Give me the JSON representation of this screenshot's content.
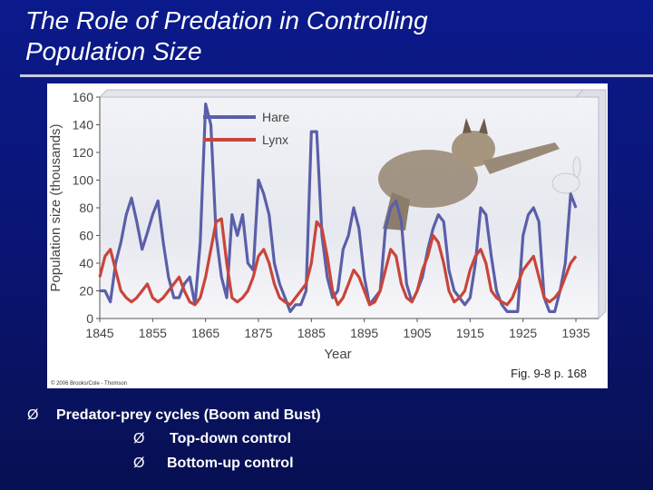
{
  "slide": {
    "title_line1": "The Role of Predation in Controlling",
    "title_line2": "Population Size",
    "figure_ref": "Fig. 9-8 p. 168",
    "copyright": "© 2006 Brooks/Cole - Thomson",
    "bullet_marker": "Ø",
    "bullet": "Predator-prey cycles (Boom and Bust)",
    "sub_bullets": [
      "Top-down control",
      "Bottom-up control"
    ]
  },
  "colors": {
    "hare": "#5b5fa8",
    "lynx": "#c9453a",
    "background": "#0b1a8c"
  },
  "chart_data": {
    "type": "line",
    "xlabel": "Year",
    "ylabel": "Population size (thousands)",
    "xlim": [
      1845,
      1935
    ],
    "ylim": [
      0,
      160
    ],
    "x_ticks": [
      "1845",
      "1855",
      "1865",
      "1875",
      "1885",
      "1895",
      "1905",
      "1915",
      "1925",
      "1935"
    ],
    "y_ticks": [
      "0",
      "20",
      "40",
      "60",
      "80",
      "100",
      "120",
      "140",
      "160"
    ],
    "legend_position": "top-left",
    "series": [
      {
        "name": "Hare",
        "x": [
          1845,
          1846,
          1847,
          1848,
          1849,
          1850,
          1851,
          1852,
          1853,
          1854,
          1855,
          1856,
          1857,
          1858,
          1859,
          1860,
          1861,
          1862,
          1863,
          1864,
          1865,
          1866,
          1867,
          1868,
          1869,
          1870,
          1871,
          1872,
          1873,
          1874,
          1875,
          1876,
          1877,
          1878,
          1879,
          1880,
          1881,
          1882,
          1883,
          1884,
          1885,
          1886,
          1887,
          1888,
          1889,
          1890,
          1891,
          1892,
          1893,
          1894,
          1895,
          1896,
          1897,
          1898,
          1899,
          1900,
          1901,
          1902,
          1903,
          1904,
          1905,
          1906,
          1907,
          1908,
          1909,
          1910,
          1911,
          1912,
          1913,
          1914,
          1915,
          1916,
          1917,
          1918,
          1919,
          1920,
          1921,
          1922,
          1923,
          1924,
          1925,
          1926,
          1927,
          1928,
          1929,
          1930,
          1931,
          1932,
          1933,
          1934,
          1935
        ],
        "values": [
          20,
          20,
          12,
          40,
          55,
          75,
          87,
          70,
          50,
          62,
          75,
          85,
          55,
          30,
          15,
          15,
          25,
          30,
          10,
          55,
          155,
          140,
          60,
          30,
          15,
          75,
          60,
          75,
          40,
          35,
          100,
          90,
          75,
          40,
          25,
          15,
          5,
          10,
          10,
          20,
          135,
          135,
          60,
          30,
          15,
          20,
          50,
          60,
          80,
          65,
          30,
          10,
          15,
          20,
          65,
          80,
          85,
          70,
          25,
          12,
          20,
          30,
          50,
          65,
          75,
          70,
          35,
          20,
          15,
          10,
          15,
          40,
          80,
          75,
          45,
          20,
          10,
          5,
          5,
          5,
          60,
          75,
          80,
          70,
          15,
          5,
          5,
          20,
          40,
          90,
          80
        ]
      },
      {
        "name": "Lynx",
        "x": [
          1845,
          1846,
          1847,
          1848,
          1849,
          1850,
          1851,
          1852,
          1853,
          1854,
          1855,
          1856,
          1857,
          1858,
          1859,
          1860,
          1861,
          1862,
          1863,
          1864,
          1865,
          1866,
          1867,
          1868,
          1869,
          1870,
          1871,
          1872,
          1873,
          1874,
          1875,
          1876,
          1877,
          1878,
          1879,
          1880,
          1881,
          1882,
          1883,
          1884,
          1885,
          1886,
          1887,
          1888,
          1889,
          1890,
          1891,
          1892,
          1893,
          1894,
          1895,
          1896,
          1897,
          1898,
          1899,
          1900,
          1901,
          1902,
          1903,
          1904,
          1905,
          1906,
          1907,
          1908,
          1909,
          1910,
          1911,
          1912,
          1913,
          1914,
          1915,
          1916,
          1917,
          1918,
          1919,
          1920,
          1921,
          1922,
          1923,
          1924,
          1925,
          1926,
          1927,
          1928,
          1929,
          1930,
          1931,
          1932,
          1933,
          1934,
          1935
        ],
        "values": [
          30,
          45,
          50,
          35,
          20,
          15,
          12,
          15,
          20,
          25,
          15,
          12,
          15,
          20,
          25,
          30,
          20,
          12,
          10,
          15,
          30,
          50,
          70,
          72,
          40,
          15,
          12,
          15,
          20,
          30,
          45,
          50,
          40,
          25,
          15,
          12,
          10,
          15,
          20,
          25,
          40,
          70,
          65,
          45,
          20,
          10,
          15,
          25,
          35,
          30,
          20,
          10,
          12,
          20,
          35,
          50,
          45,
          25,
          15,
          12,
          20,
          35,
          45,
          60,
          55,
          40,
          20,
          12,
          15,
          20,
          35,
          45,
          50,
          40,
          20,
          15,
          12,
          10,
          15,
          25,
          35,
          40,
          45,
          30,
          15,
          12,
          15,
          20,
          30,
          40,
          45
        ]
      }
    ]
  }
}
